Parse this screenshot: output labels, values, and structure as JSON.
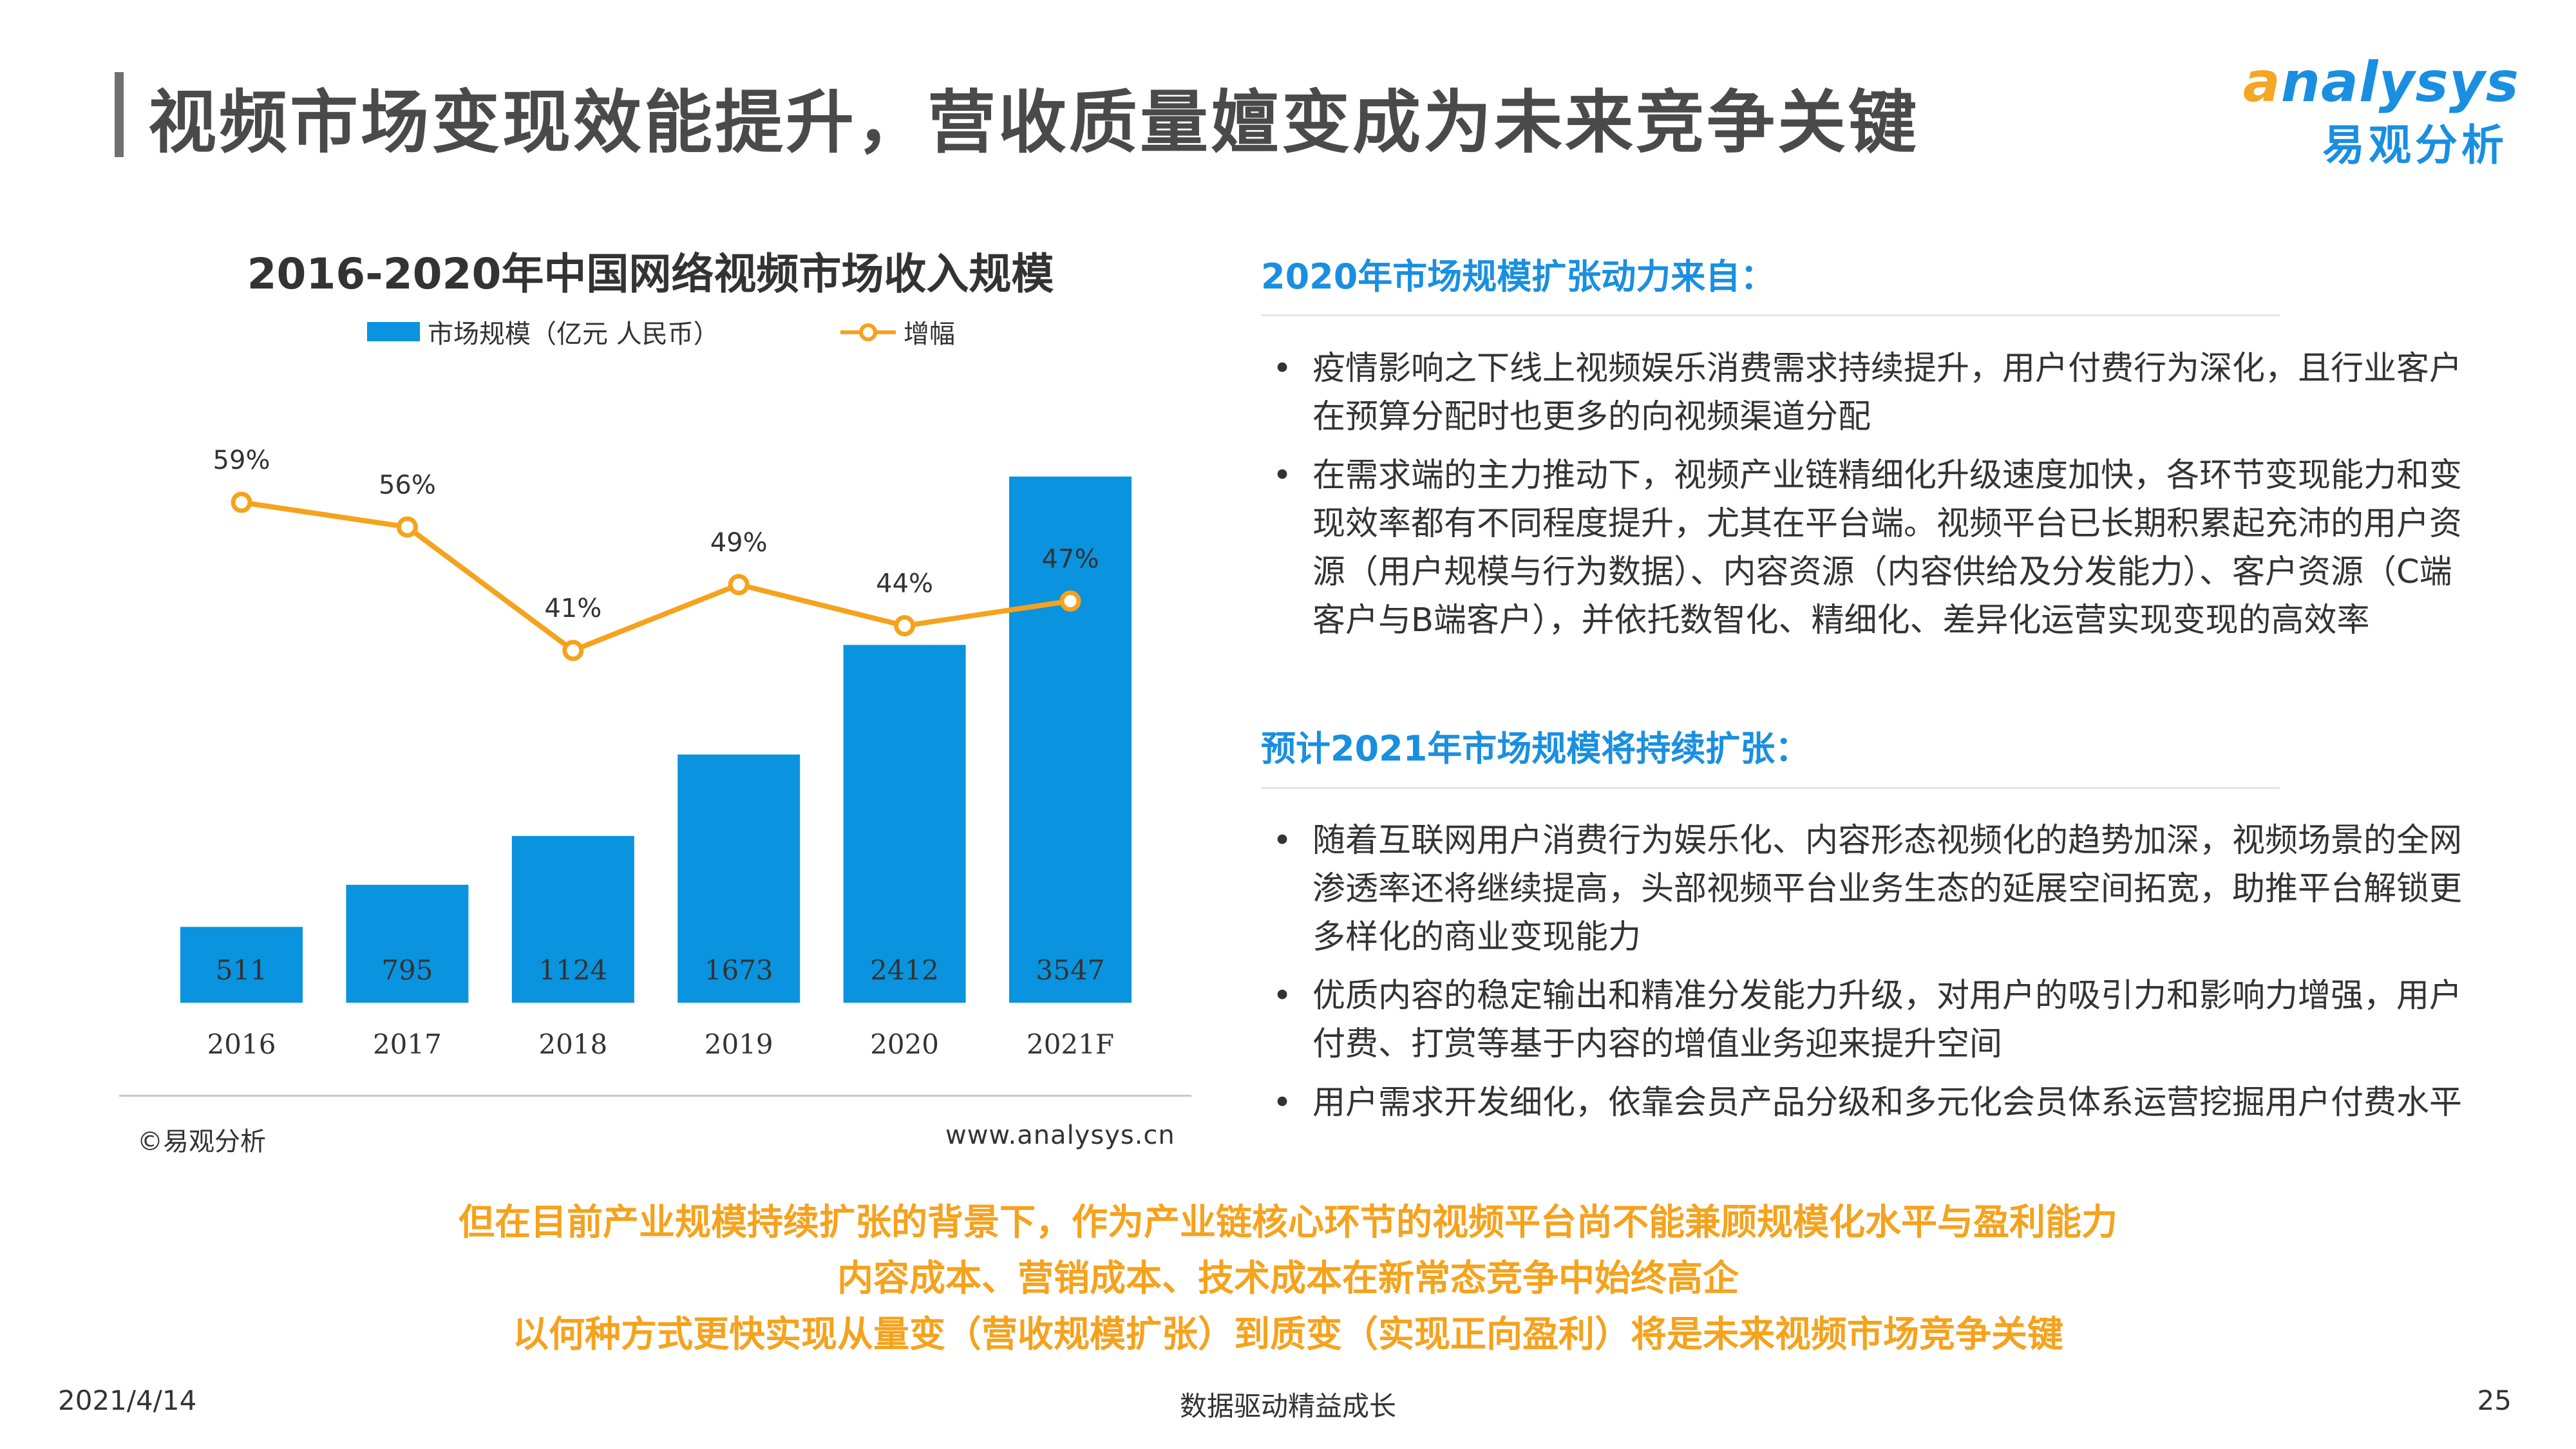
{
  "header": {
    "title": "视频市场变现效能提升，营收质量嬗变成为未来竞争关键",
    "logo_en_first": "a",
    "logo_en_rest": "nalysys",
    "logo_cn": "易观分析"
  },
  "chart_data": {
    "type": "bar",
    "title": "2016-2020年中国网络视频市场收入规模",
    "categories": [
      "2016",
      "2017",
      "2018",
      "2019",
      "2020",
      "2021F"
    ],
    "series": [
      {
        "name": "市场规模（亿元 人民币）",
        "type": "bar",
        "values": [
          511,
          795,
          1124,
          1673,
          2412,
          3547
        ],
        "color": "#0a93de"
      },
      {
        "name": "增幅",
        "type": "line",
        "values": [
          59,
          56,
          41,
          49,
          44,
          47
        ],
        "labels": [
          "59%",
          "56%",
          "41%",
          "49%",
          "44%",
          "47%"
        ],
        "color": "#f5a21d"
      }
    ],
    "legend_position": "top",
    "grid": false,
    "bar_ylim": [
      0,
      3547
    ],
    "line_ylim": [
      41,
      59
    ]
  },
  "source": {
    "copyright": "©易观分析",
    "website": "www.analysys.cn"
  },
  "sections": [
    {
      "heading": "2020年市场规模扩张动力来自：",
      "bullets": [
        "疫情影响之下线上视频娱乐消费需求持续提升，用户付费行为深化，且行业客户在预算分配时也更多的向视频渠道分配",
        "在需求端的主力推动下，视频产业链精细化升级速度加快，各环节变现能力和变现效率都有不同程度提升，尤其在平台端。视频平台已长期积累起充沛的用户资源（用户规模与行为数据）、内容资源（内容供给及分发能力）、客户资源（C端客户与B端客户），并依托数智化、精细化、差异化运营实现变现的高效率"
      ]
    },
    {
      "heading": "预计2021年市场规模将持续扩张：",
      "bullets": [
        "随着互联网用户消费行为娱乐化、内容形态视频化的趋势加深，视频场景的全网渗透率还将继续提高，头部视频平台业务生态的延展空间拓宽，助推平台解锁更多样化的商业变现能力",
        "优质内容的稳定输出和精准分发能力升级，对用户的吸引力和影响力增强，用户付费、打赏等基于内容的增值业务迎来提升空间",
        "用户需求开发细化，依靠会员产品分级和多元化会员体系运营挖掘用户付费水平"
      ]
    }
  ],
  "conclusion": [
    "但在目前产业规模持续扩张的背景下，作为产业链核心环节的视频平台尚不能兼顾规模化水平与盈利能力",
    "内容成本、营销成本、技术成本在新常态竞争中始终高企",
    "以何种方式更快实现从量变（营收规模扩张）到质变（实现正向盈利）将是未来视频市场竞争关键"
  ],
  "footer": {
    "date": "2021/4/14",
    "slogan": "数据驱动精益成长",
    "page": "25"
  }
}
